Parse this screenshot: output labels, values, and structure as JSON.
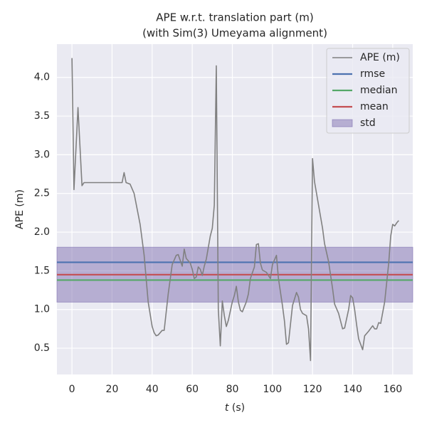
{
  "chart_data": {
    "type": "line",
    "title": "APE w.r.t. translation part (m)",
    "subtitle": "(with Sim(3) Umeyama alignment)",
    "xlabel": {
      "symbol": "t",
      "unit": "(s)"
    },
    "ylabel": "APE (m)",
    "x": [
      0,
      1,
      3,
      5,
      6,
      10,
      20,
      25,
      26,
      27,
      29,
      31,
      34,
      36,
      38,
      40,
      41,
      42,
      43,
      45,
      46,
      48,
      50,
      52,
      53,
      55,
      56,
      57,
      59,
      60,
      61,
      62,
      63,
      64,
      65,
      66,
      67,
      69,
      70,
      71,
      72,
      73,
      74,
      75,
      76,
      77,
      78,
      80,
      81,
      82,
      83,
      84,
      85,
      87,
      88,
      89,
      91,
      92,
      93,
      94,
      95,
      97,
      99,
      100,
      102,
      103,
      105,
      106,
      107,
      108,
      110,
      112,
      113,
      114,
      115,
      117,
      118,
      119,
      120,
      121,
      123,
      125,
      126,
      128,
      130,
      131,
      133,
      135,
      136,
      138,
      139,
      140,
      141,
      142,
      143,
      145,
      146,
      148,
      150,
      151,
      152,
      153,
      154,
      156,
      158,
      159,
      160,
      161,
      162,
      163
    ],
    "series": [
      {
        "name": "APE (m)",
        "color": "#808080",
        "values": [
          4.25,
          2.55,
          3.61,
          2.6,
          2.64,
          2.64,
          2.64,
          2.64,
          2.77,
          2.64,
          2.62,
          2.5,
          2.1,
          1.7,
          1.1,
          0.78,
          0.7,
          0.66,
          0.67,
          0.73,
          0.73,
          1.2,
          1.58,
          1.7,
          1.71,
          1.56,
          1.78,
          1.66,
          1.6,
          1.52,
          1.4,
          1.42,
          1.55,
          1.52,
          1.44,
          1.56,
          1.65,
          1.95,
          2.05,
          2.35,
          4.15,
          1.0,
          0.53,
          1.11,
          0.92,
          0.78,
          0.86,
          1.1,
          1.18,
          1.3,
          1.1,
          0.99,
          0.97,
          1.1,
          1.2,
          1.4,
          1.55,
          1.84,
          1.85,
          1.6,
          1.51,
          1.48,
          1.4,
          1.58,
          1.7,
          1.4,
          1.05,
          0.85,
          0.55,
          0.57,
          1.05,
          1.22,
          1.16,
          1.0,
          0.95,
          0.92,
          0.75,
          0.34,
          2.95,
          2.65,
          2.35,
          2.05,
          1.85,
          1.62,
          1.27,
          1.07,
          0.95,
          0.75,
          0.76,
          1.0,
          1.18,
          1.15,
          1.0,
          0.8,
          0.62,
          0.48,
          0.66,
          0.72,
          0.79,
          0.75,
          0.75,
          0.83,
          0.82,
          1.1,
          1.6,
          1.95,
          2.1,
          2.08,
          2.12,
          2.15
        ]
      }
    ],
    "stats": [
      {
        "name": "rmse",
        "color": "#4c72b0",
        "value": 1.61
      },
      {
        "name": "median",
        "color": "#55a868",
        "value": 1.38
      },
      {
        "name": "mean",
        "color": "#c44e52",
        "value": 1.45
      }
    ],
    "std": {
      "name": "std",
      "color": "#8172b2",
      "value": 0.355
    },
    "xlim": [
      -7.5,
      170
    ],
    "ylim": [
      0.16,
      4.43
    ],
    "xticks": [
      0,
      20,
      40,
      60,
      80,
      100,
      120,
      140,
      160
    ],
    "yticks": [
      0.5,
      {
        "value": 1,
        "label": "1.0"
      },
      1.5,
      {
        "value": 2,
        "label": "2.0"
      },
      2.5,
      {
        "value": 3,
        "label": "3.0"
      },
      3.5,
      {
        "value": 4,
        "label": "4.0"
      }
    ],
    "grid": true,
    "legend": "upper right"
  }
}
